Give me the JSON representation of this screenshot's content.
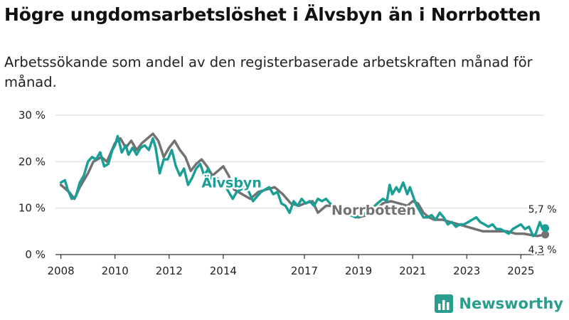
{
  "title": "Högre ungdomsarbetslöshet i Älvsbyn än i Norrbotten",
  "subtitle": "Arbetssökande som andel av den registerbaserade arbetskraften månad för månad.",
  "brand": "Newsworthy",
  "colors": {
    "alvsbyn": "#1a9e96",
    "norrbotten": "#727272",
    "grid": "#d9d9d9",
    "axis": "#333333",
    "brand": "#2a9d8f"
  },
  "chart_data": {
    "type": "line",
    "ylim": [
      0,
      30
    ],
    "xlim": [
      2007.8,
      2026.2
    ],
    "y_ticks": [
      0,
      10,
      20,
      30
    ],
    "y_tick_labels": [
      "0 %",
      "10 %",
      "20 %",
      "30 %"
    ],
    "x_ticks": [
      2008,
      2010,
      2012,
      2014,
      2017,
      2019,
      2021,
      2023,
      2025
    ],
    "x_tick_labels": [
      "2008",
      "2010",
      "2012",
      "2014",
      "2017",
      "2019",
      "2021",
      "2023",
      "2025"
    ],
    "grid": "horizontal",
    "series": [
      {
        "name": "Norrbotten",
        "color": "#727272",
        "end_label": "4,3 %",
        "points": [
          [
            2008.0,
            15.0
          ],
          [
            2008.3,
            13.5
          ],
          [
            2008.5,
            12.0
          ],
          [
            2008.7,
            14.5
          ],
          [
            2009.0,
            17.5
          ],
          [
            2009.2,
            20.0
          ],
          [
            2009.5,
            21.0
          ],
          [
            2009.7,
            20.0
          ],
          [
            2010.0,
            24.0
          ],
          [
            2010.2,
            25.0
          ],
          [
            2010.4,
            23.0
          ],
          [
            2010.6,
            24.5
          ],
          [
            2010.8,
            22.5
          ],
          [
            2011.0,
            24.0
          ],
          [
            2011.2,
            25.0
          ],
          [
            2011.4,
            26.0
          ],
          [
            2011.6,
            24.5
          ],
          [
            2011.8,
            21.0
          ],
          [
            2012.0,
            23.0
          ],
          [
            2012.2,
            24.5
          ],
          [
            2012.4,
            22.5
          ],
          [
            2012.6,
            21.0
          ],
          [
            2012.8,
            18.0
          ],
          [
            2013.0,
            19.5
          ],
          [
            2013.2,
            20.5
          ],
          [
            2013.4,
            19.0
          ],
          [
            2013.6,
            17.0
          ],
          [
            2013.8,
            18.0
          ],
          [
            2014.0,
            19.0
          ],
          [
            2014.2,
            17.0
          ],
          [
            2014.4,
            14.0
          ],
          [
            2014.7,
            13.0
          ],
          [
            2015.0,
            12.0
          ],
          [
            2015.3,
            13.5
          ],
          [
            2015.6,
            14.0
          ],
          [
            2015.9,
            14.5
          ],
          [
            2016.2,
            13.0
          ],
          [
            2016.5,
            11.0
          ],
          [
            2016.8,
            10.5
          ],
          [
            2017.0,
            11.0
          ],
          [
            2017.3,
            11.5
          ],
          [
            2017.5,
            9.0
          ],
          [
            2017.8,
            10.5
          ],
          [
            2018.1,
            10.5
          ],
          [
            2018.4,
            9.5
          ],
          [
            2018.7,
            8.5
          ],
          [
            2019.0,
            8.0
          ],
          [
            2019.3,
            8.5
          ],
          [
            2019.6,
            9.5
          ],
          [
            2019.9,
            11.0
          ],
          [
            2020.2,
            11.5
          ],
          [
            2020.5,
            11.0
          ],
          [
            2020.8,
            10.5
          ],
          [
            2021.0,
            11.5
          ],
          [
            2021.2,
            11.0
          ],
          [
            2021.4,
            9.0
          ],
          [
            2021.6,
            8.0
          ],
          [
            2021.8,
            7.5
          ],
          [
            2022.1,
            7.5
          ],
          [
            2022.4,
            7.0
          ],
          [
            2022.7,
            6.5
          ],
          [
            2023.0,
            6.0
          ],
          [
            2023.3,
            5.5
          ],
          [
            2023.6,
            5.0
          ],
          [
            2023.9,
            5.0
          ],
          [
            2024.2,
            5.0
          ],
          [
            2024.5,
            5.0
          ],
          [
            2024.8,
            4.5
          ],
          [
            2025.1,
            4.5
          ],
          [
            2025.4,
            4.2
          ],
          [
            2025.6,
            4.0
          ],
          [
            2025.9,
            4.3
          ]
        ]
      },
      {
        "name": "Älvsbyn",
        "color": "#1a9e96",
        "end_label": "5,7 %",
        "points": [
          [
            2008.0,
            15.5
          ],
          [
            2008.15,
            16.0
          ],
          [
            2008.25,
            14.0
          ],
          [
            2008.4,
            12.0
          ],
          [
            2008.55,
            12.5
          ],
          [
            2008.7,
            15.5
          ],
          [
            2008.85,
            17.0
          ],
          [
            2009.0,
            20.0
          ],
          [
            2009.15,
            21.0
          ],
          [
            2009.3,
            20.5
          ],
          [
            2009.45,
            22.0
          ],
          [
            2009.6,
            19.0
          ],
          [
            2009.75,
            19.5
          ],
          [
            2009.9,
            22.5
          ],
          [
            2010.0,
            23.5
          ],
          [
            2010.1,
            25.5
          ],
          [
            2010.25,
            22.0
          ],
          [
            2010.4,
            23.5
          ],
          [
            2010.5,
            21.5
          ],
          [
            2010.65,
            23.0
          ],
          [
            2010.8,
            21.5
          ],
          [
            2010.95,
            23.0
          ],
          [
            2011.1,
            23.5
          ],
          [
            2011.25,
            22.5
          ],
          [
            2011.4,
            25.0
          ],
          [
            2011.5,
            23.0
          ],
          [
            2011.65,
            17.5
          ],
          [
            2011.8,
            20.5
          ],
          [
            2011.95,
            20.5
          ],
          [
            2012.1,
            22.5
          ],
          [
            2012.25,
            19.0
          ],
          [
            2012.4,
            17.0
          ],
          [
            2012.55,
            18.5
          ],
          [
            2012.7,
            15.0
          ],
          [
            2012.85,
            16.5
          ],
          [
            2013.0,
            18.5
          ],
          [
            2013.15,
            19.5
          ],
          [
            2013.3,
            17.0
          ],
          [
            2013.45,
            18.5
          ],
          [
            2013.6,
            15.0
          ],
          [
            2013.75,
            16.5
          ],
          [
            2013.9,
            16.0
          ],
          [
            2014.05,
            15.0
          ],
          [
            2014.2,
            13.5
          ],
          [
            2014.35,
            12.0
          ],
          [
            2014.5,
            13.5
          ],
          [
            2014.65,
            14.0
          ],
          [
            2014.8,
            14.5
          ],
          [
            2014.95,
            13.5
          ],
          [
            2015.1,
            11.5
          ],
          [
            2015.25,
            12.5
          ],
          [
            2015.4,
            13.5
          ],
          [
            2015.55,
            14.0
          ],
          [
            2015.7,
            14.5
          ],
          [
            2015.85,
            13.0
          ],
          [
            2016.0,
            13.5
          ],
          [
            2016.15,
            11.0
          ],
          [
            2016.3,
            10.5
          ],
          [
            2016.45,
            9.0
          ],
          [
            2016.6,
            11.5
          ],
          [
            2016.75,
            10.5
          ],
          [
            2016.9,
            12.0
          ],
          [
            2017.05,
            11.0
          ],
          [
            2017.2,
            11.5
          ],
          [
            2017.35,
            10.5
          ],
          [
            2017.5,
            12.0
          ],
          [
            2017.65,
            11.5
          ],
          [
            2017.8,
            12.0
          ],
          [
            2017.95,
            11.0
          ],
          [
            2018.1,
            10.5
          ],
          [
            2018.3,
            9.5
          ],
          [
            2018.5,
            9.0
          ],
          [
            2018.7,
            8.5
          ],
          [
            2018.9,
            8.0
          ],
          [
            2019.1,
            8.5
          ],
          [
            2019.3,
            9.0
          ],
          [
            2019.5,
            10.0
          ],
          [
            2019.7,
            11.0
          ],
          [
            2019.9,
            12.0
          ],
          [
            2020.05,
            11.5
          ],
          [
            2020.15,
            15.0
          ],
          [
            2020.25,
            13.0
          ],
          [
            2020.4,
            14.5
          ],
          [
            2020.5,
            13.5
          ],
          [
            2020.65,
            15.5
          ],
          [
            2020.8,
            13.0
          ],
          [
            2020.9,
            14.5
          ],
          [
            2021.05,
            12.0
          ],
          [
            2021.15,
            10.5
          ],
          [
            2021.25,
            9.5
          ],
          [
            2021.4,
            8.0
          ],
          [
            2021.55,
            8.0
          ],
          [
            2021.7,
            8.5
          ],
          [
            2021.85,
            7.5
          ],
          [
            2022.0,
            9.0
          ],
          [
            2022.15,
            8.0
          ],
          [
            2022.3,
            6.5
          ],
          [
            2022.45,
            7.0
          ],
          [
            2022.6,
            6.0
          ],
          [
            2022.75,
            6.5
          ],
          [
            2022.9,
            6.5
          ],
          [
            2023.05,
            7.0
          ],
          [
            2023.2,
            7.5
          ],
          [
            2023.35,
            8.0
          ],
          [
            2023.5,
            7.0
          ],
          [
            2023.65,
            6.5
          ],
          [
            2023.8,
            6.0
          ],
          [
            2023.95,
            6.5
          ],
          [
            2024.1,
            5.5
          ],
          [
            2024.25,
            5.5
          ],
          [
            2024.4,
            5.0
          ],
          [
            2024.55,
            4.5
          ],
          [
            2024.7,
            5.5
          ],
          [
            2024.85,
            6.0
          ],
          [
            2025.0,
            6.5
          ],
          [
            2025.15,
            5.5
          ],
          [
            2025.3,
            6.0
          ],
          [
            2025.45,
            4.0
          ],
          [
            2025.55,
            4.5
          ],
          [
            2025.7,
            7.0
          ],
          [
            2025.8,
            5.5
          ],
          [
            2025.9,
            5.7
          ]
        ]
      }
    ]
  }
}
